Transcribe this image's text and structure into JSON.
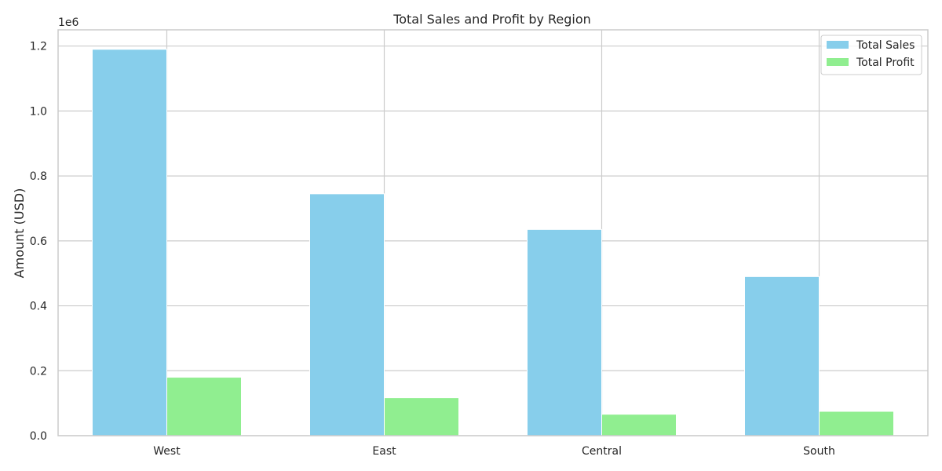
{
  "chart_data": {
    "type": "bar",
    "title": "Total Sales and Profit by Region",
    "xlabel": "",
    "ylabel": "Amount (USD)",
    "offset_text": "1e6",
    "categories": [
      "West",
      "East",
      "Central",
      "South"
    ],
    "series": [
      {
        "name": "Total Sales",
        "values": [
          1190000,
          745000,
          635000,
          490000
        ],
        "color": "#87ceeb"
      },
      {
        "name": "Total Profit",
        "values": [
          180000,
          117000,
          66000,
          75000
        ],
        "color": "#90ee90"
      }
    ],
    "ylim": [
      0,
      1250000
    ],
    "yticks": [
      0,
      200000,
      400000,
      600000,
      800000,
      1000000,
      1200000
    ],
    "ytick_labels": [
      "0.0",
      "0.2",
      "0.4",
      "0.6",
      "0.8",
      "1.0",
      "1.2"
    ],
    "grid": true,
    "legend_position": "top-right"
  }
}
